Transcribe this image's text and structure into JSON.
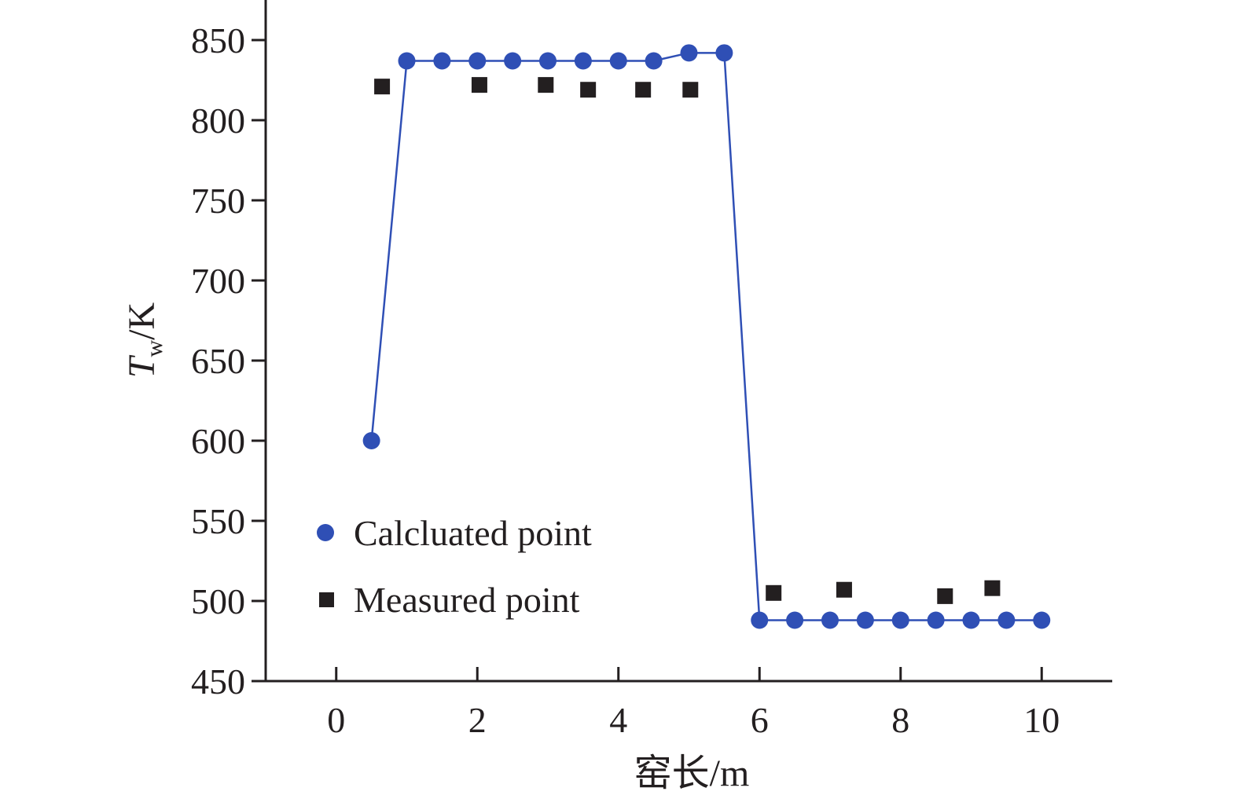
{
  "chart_data": {
    "type": "scatter",
    "title": "",
    "xlabel": "窑长/m",
    "ylabel": {
      "main": "T",
      "sub": "w",
      "unit": "/K"
    },
    "xlim": [
      -1,
      11
    ],
    "ylim": [
      450,
      875
    ],
    "xticks": [
      0,
      2,
      4,
      6,
      8,
      10
    ],
    "yticks": [
      450,
      500,
      550,
      600,
      650,
      700,
      750,
      800,
      850
    ],
    "grid": false,
    "legend_position": "bottom-left",
    "series": [
      {
        "name": "Calcluated point",
        "marker": "circle",
        "connected": true,
        "color": "#2f4fb5",
        "x": [
          0.5,
          1.0,
          1.5,
          2.0,
          2.5,
          3.0,
          3.5,
          4.0,
          4.5,
          5.0,
          5.5,
          6.0,
          6.5,
          7.0,
          7.5,
          8.0,
          8.5,
          9.0,
          9.5,
          10.0
        ],
        "y": [
          600,
          837,
          837,
          837,
          837,
          837,
          837,
          837,
          837,
          842,
          842,
          488,
          488,
          488,
          488,
          488,
          488,
          488,
          488,
          488
        ]
      },
      {
        "name": "Measured point",
        "marker": "square",
        "connected": false,
        "color": "#231f20",
        "x": [
          0.65,
          2.03,
          2.97,
          3.57,
          4.35,
          5.02,
          6.2,
          7.2,
          8.63,
          9.3
        ],
        "y": [
          821,
          822,
          822,
          819,
          819,
          819,
          505,
          507,
          503,
          508
        ]
      }
    ]
  }
}
